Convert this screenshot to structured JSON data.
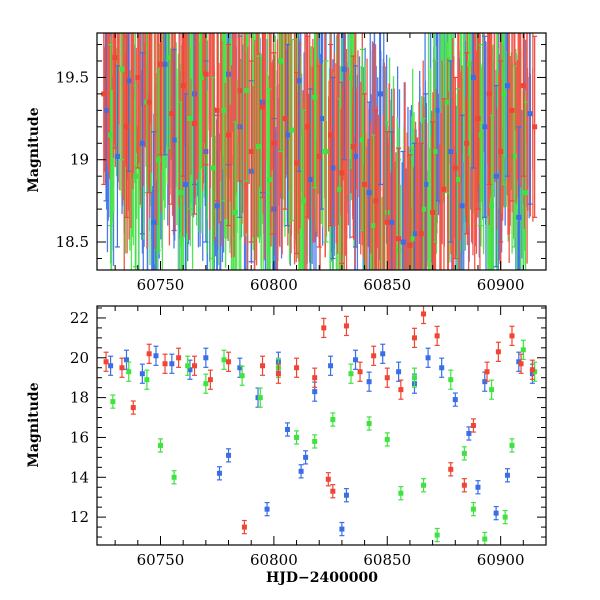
{
  "chart_data": [
    {
      "type": "scatter",
      "panel": "top",
      "title": "",
      "xlabel": "",
      "ylabel": "Magnitude",
      "xlim": [
        60722,
        60920
      ],
      "ylim": [
        19.77,
        18.33
      ],
      "y_inverted": true,
      "xticks": [
        60750,
        60800,
        60850,
        60900
      ],
      "xtick_labels": [
        "60750",
        "60800",
        "60850",
        "60900"
      ],
      "yticks": [
        18.5,
        19,
        19.5
      ],
      "ytick_labels": [
        "18.5",
        "19",
        "19.5"
      ],
      "series": [
        {
          "color": "#3a6ee8",
          "points": [
            [
              60726,
              19.3
            ],
            [
              60731,
              19.02
            ],
            [
              60736,
              19.48
            ],
            [
              60742,
              19.1
            ],
            [
              60747,
              18.62
            ],
            [
              60752,
              19.58
            ],
            [
              60756,
              19.12
            ],
            [
              60761,
              18.85
            ],
            [
              60765,
              19.4
            ],
            [
              60770,
              19.05
            ],
            [
              60775,
              18.72
            ],
            [
              60780,
              19.52
            ],
            [
              60785,
              19.2
            ],
            [
              60790,
              18.93
            ],
            [
              60795,
              19.35
            ],
            [
              60800,
              18.7
            ],
            [
              60806,
              19.15
            ],
            [
              60811,
              19.48
            ],
            [
              60816,
              18.88
            ],
            [
              60821,
              19.25
            ],
            [
              60826,
              18.95
            ],
            [
              60831,
              19.55
            ],
            [
              60836,
              19.02
            ],
            [
              60842,
              18.8
            ],
            [
              60847,
              19.4
            ],
            [
              60852,
              18.62
            ],
            [
              60857,
              18.5
            ],
            [
              60862,
              18.55
            ],
            [
              60867,
              18.85
            ],
            [
              60872,
              19.3
            ],
            [
              60878,
              19.05
            ],
            [
              60883,
              18.72
            ],
            [
              60888,
              19.5
            ],
            [
              60893,
              19.2
            ],
            [
              60898,
              18.9
            ],
            [
              60903,
              19.45
            ],
            [
              60908,
              18.65
            ],
            [
              60913,
              19.28
            ]
          ]
        },
        {
          "color": "#3fe33f",
          "points": [
            [
              60728,
              19.15
            ],
            [
              60733,
              19.55
            ],
            [
              60739,
              18.9
            ],
            [
              60744,
              19.35
            ],
            [
              60749,
              19.0
            ],
            [
              60754,
              19.62
            ],
            [
              60759,
              18.8
            ],
            [
              60763,
              19.25
            ],
            [
              60768,
              19.5
            ],
            [
              60773,
              18.95
            ],
            [
              60778,
              19.3
            ],
            [
              60783,
              18.68
            ],
            [
              60788,
              19.42
            ],
            [
              60793,
              19.08
            ],
            [
              60798,
              18.88
            ],
            [
              60803,
              19.6
            ],
            [
              60808,
              19.18
            ],
            [
              60813,
              18.75
            ],
            [
              60818,
              19.38
            ],
            [
              60823,
              19.05
            ],
            [
              60829,
              18.82
            ],
            [
              60834,
              19.5
            ],
            [
              60839,
              19.12
            ],
            [
              60844,
              18.6
            ],
            [
              60850,
              18.68
            ],
            [
              60855,
              18.45
            ],
            [
              60861,
              18.52
            ],
            [
              60866,
              18.7
            ],
            [
              60871,
              19.05
            ],
            [
              60876,
              19.35
            ],
            [
              60881,
              18.88
            ],
            [
              60886,
              19.58
            ],
            [
              60891,
              19.15
            ],
            [
              60896,
              18.72
            ],
            [
              60901,
              19.4
            ],
            [
              60906,
              19.02
            ],
            [
              60911,
              18.8
            ]
          ]
        },
        {
          "color": "#f04535",
          "points": [
            [
              60725,
              19.4
            ],
            [
              60730,
              19.62
            ],
            [
              60735,
              19.2
            ],
            [
              60740,
              19.5
            ],
            [
              60745,
              19.35
            ],
            [
              60750,
              19.58
            ],
            [
              60755,
              19.28
            ],
            [
              60760,
              19.45
            ],
            [
              60765,
              19.22
            ],
            [
              60770,
              19.52
            ],
            [
              60775,
              19.3
            ],
            [
              60780,
              19.15
            ],
            [
              60785,
              19.42
            ],
            [
              60790,
              19.05
            ],
            [
              60795,
              19.32
            ],
            [
              60800,
              19.1
            ],
            [
              60805,
              19.25
            ],
            [
              60810,
              18.98
            ],
            [
              60815,
              19.2
            ],
            [
              60820,
              19.02
            ],
            [
              60825,
              19.15
            ],
            [
              60830,
              18.92
            ],
            [
              60835,
              19.08
            ],
            [
              60840,
              18.85
            ],
            [
              60845,
              18.75
            ],
            [
              60850,
              18.62
            ],
            [
              60855,
              18.52
            ],
            [
              60860,
              18.48
            ],
            [
              60865,
              18.55
            ],
            [
              60870,
              18.68
            ],
            [
              60875,
              18.82
            ],
            [
              60880,
              18.95
            ],
            [
              60885,
              19.1
            ],
            [
              60890,
              19.25
            ],
            [
              60895,
              19.4
            ],
            [
              60900,
              19.05
            ],
            [
              60905,
              19.3
            ],
            [
              60910,
              19.45
            ],
            [
              60915,
              19.2
            ]
          ]
        }
      ]
    },
    {
      "type": "scatter",
      "panel": "bottom",
      "title": "",
      "xlabel": "HJD−2400000",
      "ylabel": "Magnitude",
      "xlim": [
        60722,
        60920
      ],
      "ylim": [
        22.6,
        10.6
      ],
      "y_inverted": true,
      "xticks": [
        60750,
        60800,
        60850,
        60900
      ],
      "xtick_labels": [
        "60750",
        "60800",
        "60850",
        "60900"
      ],
      "yticks": [
        12,
        14,
        16,
        18,
        20,
        22
      ],
      "ytick_labels": [
        "12",
        "14",
        "16",
        "18",
        "20",
        "22"
      ],
      "series": [
        {
          "color": "#3a6ee8",
          "points": [
            [
              60728,
              19.6
            ],
            [
              60735,
              19.9
            ],
            [
              60742,
              19.2
            ],
            [
              60748,
              20.1
            ],
            [
              60755,
              19.7
            ],
            [
              60763,
              19.4
            ],
            [
              60770,
              20.0
            ],
            [
              60776,
              14.2
            ],
            [
              60780,
              15.1
            ],
            [
              60785,
              19.5
            ],
            [
              60793,
              18.0
            ],
            [
              60797,
              12.4
            ],
            [
              60802,
              19.8
            ],
            [
              60806,
              16.4
            ],
            [
              60812,
              14.3
            ],
            [
              60814,
              15.0
            ],
            [
              60818,
              18.3
            ],
            [
              60825,
              19.6
            ],
            [
              60830,
              11.4
            ],
            [
              60832,
              13.1
            ],
            [
              60836,
              19.9
            ],
            [
              60842,
              18.8
            ],
            [
              60848,
              20.2
            ],
            [
              60855,
              19.3
            ],
            [
              60862,
              18.7
            ],
            [
              60868,
              20.0
            ],
            [
              60874,
              19.5
            ],
            [
              60880,
              17.9
            ],
            [
              60886,
              16.2
            ],
            [
              60890,
              13.5
            ],
            [
              60893,
              18.8
            ],
            [
              60898,
              12.2
            ],
            [
              60903,
              14.1
            ],
            [
              60908,
              19.8
            ],
            [
              60914,
              19.2
            ]
          ]
        },
        {
          "color": "#3fe33f",
          "points": [
            [
              60729,
              17.8
            ],
            [
              60736,
              19.3
            ],
            [
              60744,
              18.9
            ],
            [
              60750,
              15.6
            ],
            [
              60756,
              14.0
            ],
            [
              60762,
              19.6
            ],
            [
              60770,
              18.7
            ],
            [
              60778,
              19.9
            ],
            [
              60786,
              19.1
            ],
            [
              60794,
              18.0
            ],
            [
              60802,
              19.5
            ],
            [
              60810,
              16.0
            ],
            [
              60818,
              15.8
            ],
            [
              60826,
              16.9
            ],
            [
              60834,
              19.2
            ],
            [
              60842,
              16.7
            ],
            [
              60850,
              15.9
            ],
            [
              60856,
              13.2
            ],
            [
              60862,
              19.0
            ],
            [
              60866,
              13.6
            ],
            [
              60872,
              11.1
            ],
            [
              60878,
              18.9
            ],
            [
              60884,
              15.2
            ],
            [
              60888,
              12.4
            ],
            [
              60893,
              10.9
            ],
            [
              60896,
              18.4
            ],
            [
              60902,
              12.0
            ],
            [
              60905,
              15.6
            ],
            [
              60910,
              20.4
            ],
            [
              60915,
              19.3
            ]
          ]
        },
        {
          "color": "#f04535",
          "points": [
            [
              60726,
              19.8
            ],
            [
              60733,
              19.5
            ],
            [
              60738,
              17.5
            ],
            [
              60745,
              20.2
            ],
            [
              60752,
              19.7
            ],
            [
              60758,
              20.0
            ],
            [
              60765,
              19.6
            ],
            [
              60772,
              18.9
            ],
            [
              60780,
              19.8
            ],
            [
              60787,
              11.5
            ],
            [
              60795,
              19.6
            ],
            [
              60802,
              19.2
            ],
            [
              60810,
              19.5
            ],
            [
              60818,
              19.0
            ],
            [
              60822,
              21.5
            ],
            [
              60824,
              13.9
            ],
            [
              60826,
              13.3
            ],
            [
              60832,
              21.6
            ],
            [
              60838,
              19.3
            ],
            [
              60844,
              20.1
            ],
            [
              60850,
              19.0
            ],
            [
              60856,
              18.4
            ],
            [
              60862,
              21.0
            ],
            [
              60866,
              22.2
            ],
            [
              60872,
              21.1
            ],
            [
              60878,
              14.4
            ],
            [
              60884,
              13.6
            ],
            [
              60888,
              16.6
            ],
            [
              60894,
              19.3
            ],
            [
              60899,
              20.3
            ],
            [
              60905,
              21.1
            ],
            [
              60909,
              19.7
            ],
            [
              60914,
              19.4
            ]
          ]
        }
      ]
    }
  ]
}
